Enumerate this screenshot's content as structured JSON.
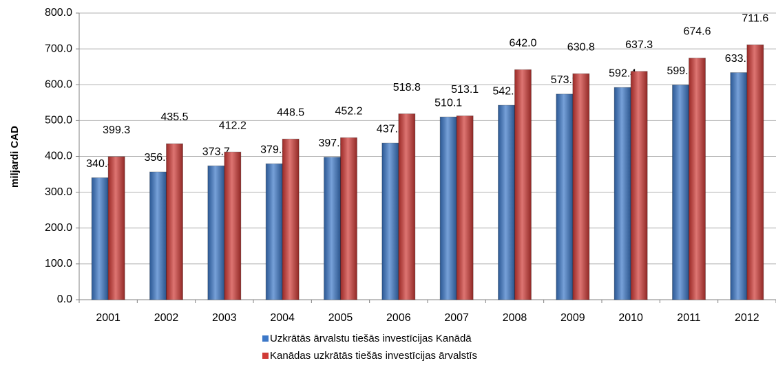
{
  "chart_data": {
    "type": "bar",
    "ylabel": "miljardi CAD",
    "categories": [
      "2001",
      "2002",
      "2003",
      "2004",
      "2005",
      "2006",
      "2007",
      "2008",
      "2009",
      "2010",
      "2011",
      "2012"
    ],
    "series": [
      {
        "name": "Uzkrātās ārvalstu tiešās investīcijas Kanādā",
        "color": "#3c78c8",
        "values": [
          340.4,
          356.8,
          373.7,
          379.5,
          397.8,
          437.2,
          510.1,
          542.7,
          573.9,
          592.4,
          599.3,
          633.9
        ],
        "value_labels": [
          "340.4",
          "356.8",
          "373.7",
          "379.5",
          "397.8",
          "437.2",
          "510.1",
          "542.7",
          "573.9",
          "592.4",
          "599.3",
          "633.9"
        ]
      },
      {
        "name": "Kanādas uzkrātās tiešās investīcijas ārvalstīs",
        "color": "#d03a36",
        "values": [
          399.3,
          435.5,
          412.2,
          448.5,
          452.2,
          518.8,
          513.1,
          642.0,
          630.8,
          637.3,
          674.6,
          711.6
        ],
        "value_labels": [
          "399.3",
          "435.5",
          "412.2",
          "448.5",
          "452.2",
          "518.8",
          "513.1",
          "642.0",
          "630.8",
          "637.3",
          "674.6",
          "711.6"
        ]
      }
    ],
    "ylim": [
      0,
      800
    ],
    "yticks": [
      {
        "value": 0,
        "label": "0.0"
      },
      {
        "value": 100,
        "label": "100.0"
      },
      {
        "value": 200,
        "label": "200.0"
      },
      {
        "value": 300,
        "label": "300.0"
      },
      {
        "value": 400,
        "label": "400.0"
      },
      {
        "value": 500,
        "label": "500.0"
      },
      {
        "value": 600,
        "label": "600.0"
      },
      {
        "value": 700,
        "label": "700.0"
      },
      {
        "value": 800,
        "label": "800.0"
      }
    ],
    "grid": true,
    "legend": "bottom"
  }
}
